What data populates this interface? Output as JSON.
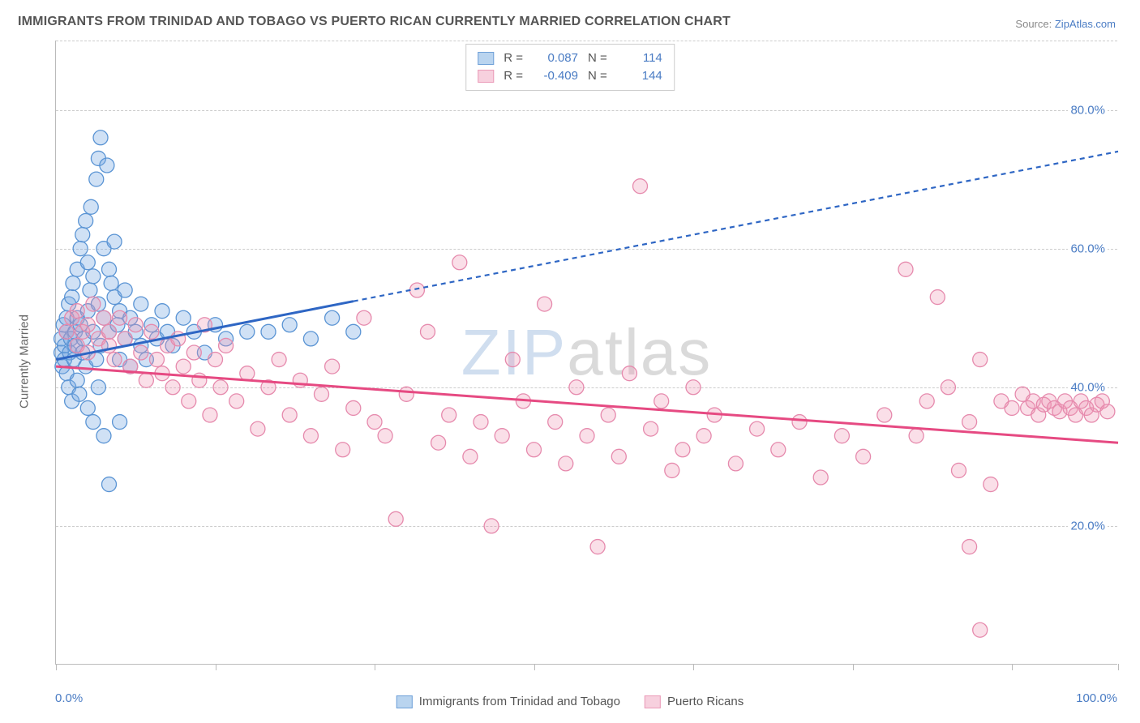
{
  "title": "IMMIGRANTS FROM TRINIDAD AND TOBAGO VS PUERTO RICAN CURRENTLY MARRIED CORRELATION CHART",
  "source_label": "Source:",
  "source_value": "ZipAtlas.com",
  "y_axis_title": "Currently Married",
  "watermark_a": "ZIP",
  "watermark_b": "atlas",
  "chart": {
    "type": "scatter",
    "xlim": [
      0,
      100
    ],
    "ylim": [
      0,
      90
    ],
    "x_ticks": [
      0,
      15,
      30,
      45,
      60,
      75,
      90,
      100
    ],
    "x_tick_labels": {
      "0": "0.0%",
      "100": "100.0%"
    },
    "y_ticks": [
      20,
      40,
      60,
      80
    ],
    "y_tick_labels": [
      "20.0%",
      "40.0%",
      "60.0%",
      "80.0%"
    ],
    "grid_color": "#cccccc",
    "background_color": "#ffffff",
    "axis_color": "#bbbbbb",
    "marker_radius": 9,
    "marker_stroke_width": 1.3,
    "trend_line_width": 3,
    "trend_dash": "6,5",
    "label_fontsize": 15,
    "title_fontsize": 16,
    "title_color": "#555555",
    "value_color": "#4a7cc4"
  },
  "series": [
    {
      "name": "Immigrants from Trinidad and Tobago",
      "fill": "rgba(120,170,225,0.35)",
      "stroke": "#5a94d4",
      "swatch_fill": "#b9d4ef",
      "swatch_border": "#6ea0d8",
      "line_color": "#2e66c4",
      "R": "0.087",
      "N": "114",
      "trend": {
        "x1": 0,
        "y1": 44,
        "x2": 100,
        "y2": 74,
        "solid_until_x": 28
      },
      "points": [
        [
          0.5,
          45
        ],
        [
          0.5,
          47
        ],
        [
          0.6,
          43
        ],
        [
          0.7,
          49
        ],
        [
          0.8,
          44
        ],
        [
          0.8,
          46
        ],
        [
          1.0,
          48
        ],
        [
          1.0,
          50
        ],
        [
          1.0,
          42
        ],
        [
          1.2,
          52
        ],
        [
          1.2,
          40
        ],
        [
          1.3,
          45
        ],
        [
          1.4,
          47
        ],
        [
          1.5,
          53
        ],
        [
          1.5,
          38
        ],
        [
          1.6,
          55
        ],
        [
          1.7,
          44
        ],
        [
          1.8,
          46
        ],
        [
          1.8,
          48
        ],
        [
          2.0,
          50
        ],
        [
          2.0,
          57
        ],
        [
          2.0,
          41
        ],
        [
          2.2,
          39
        ],
        [
          2.3,
          60
        ],
        [
          2.3,
          49
        ],
        [
          2.5,
          62
        ],
        [
          2.5,
          45
        ],
        [
          2.6,
          47
        ],
        [
          2.8,
          64
        ],
        [
          2.8,
          43
        ],
        [
          3.0,
          51
        ],
        [
          3.0,
          37
        ],
        [
          3.0,
          58
        ],
        [
          3.2,
          54
        ],
        [
          3.3,
          66
        ],
        [
          3.5,
          56
        ],
        [
          3.5,
          48
        ],
        [
          3.5,
          35
        ],
        [
          3.8,
          70
        ],
        [
          3.8,
          44
        ],
        [
          4.0,
          73
        ],
        [
          4.0,
          52
        ],
        [
          4.0,
          40
        ],
        [
          4.2,
          76
        ],
        [
          4.2,
          46
        ],
        [
          4.5,
          60
        ],
        [
          4.5,
          50
        ],
        [
          4.5,
          33
        ],
        [
          4.8,
          72
        ],
        [
          5.0,
          57
        ],
        [
          5.0,
          48
        ],
        [
          5.0,
          26
        ],
        [
          5.2,
          55
        ],
        [
          5.5,
          53
        ],
        [
          5.5,
          61
        ],
        [
          5.8,
          49
        ],
        [
          6.0,
          44
        ],
        [
          6.0,
          35
        ],
        [
          6.0,
          51
        ],
        [
          6.5,
          47
        ],
        [
          6.5,
          54
        ],
        [
          7.0,
          50
        ],
        [
          7.0,
          43
        ],
        [
          7.5,
          48
        ],
        [
          8.0,
          46
        ],
        [
          8.0,
          52
        ],
        [
          8.5,
          44
        ],
        [
          9.0,
          49
        ],
        [
          9.5,
          47
        ],
        [
          10.0,
          51
        ],
        [
          10.5,
          48
        ],
        [
          11.0,
          46
        ],
        [
          12.0,
          50
        ],
        [
          13.0,
          48
        ],
        [
          14.0,
          45
        ],
        [
          15.0,
          49
        ],
        [
          16.0,
          47
        ],
        [
          18.0,
          48
        ],
        [
          20.0,
          48
        ],
        [
          22.0,
          49
        ],
        [
          24.0,
          47
        ],
        [
          26.0,
          50
        ],
        [
          28.0,
          48
        ]
      ]
    },
    {
      "name": "Puerto Ricans",
      "fill": "rgba(240,150,180,0.30)",
      "stroke": "#e68aad",
      "swatch_fill": "#f7d0de",
      "swatch_border": "#ea9ab8",
      "line_color": "#e64a82",
      "R": "-0.409",
      "N": "144",
      "trend": {
        "x1": 0,
        "y1": 43,
        "x2": 100,
        "y2": 32,
        "solid_until_x": 100
      },
      "points": [
        [
          1.0,
          48
        ],
        [
          1.5,
          50
        ],
        [
          2.0,
          46
        ],
        [
          2.0,
          51
        ],
        [
          2.5,
          48
        ],
        [
          3.0,
          45
        ],
        [
          3.0,
          49
        ],
        [
          3.5,
          52
        ],
        [
          4.0,
          47
        ],
        [
          4.5,
          50
        ],
        [
          5.0,
          46
        ],
        [
          5.0,
          48
        ],
        [
          5.5,
          44
        ],
        [
          6.0,
          50
        ],
        [
          6.5,
          47
        ],
        [
          7.0,
          43
        ],
        [
          7.5,
          49
        ],
        [
          8.0,
          45
        ],
        [
          8.5,
          41
        ],
        [
          9.0,
          48
        ],
        [
          9.5,
          44
        ],
        [
          10,
          42
        ],
        [
          10.5,
          46
        ],
        [
          11,
          40
        ],
        [
          11.5,
          47
        ],
        [
          12,
          43
        ],
        [
          12.5,
          38
        ],
        [
          13,
          45
        ],
        [
          13.5,
          41
        ],
        [
          14,
          49
        ],
        [
          14.5,
          36
        ],
        [
          15,
          44
        ],
        [
          15.5,
          40
        ],
        [
          16,
          46
        ],
        [
          17,
          38
        ],
        [
          18,
          42
        ],
        [
          19,
          34
        ],
        [
          20,
          40
        ],
        [
          21,
          44
        ],
        [
          22,
          36
        ],
        [
          23,
          41
        ],
        [
          24,
          33
        ],
        [
          25,
          39
        ],
        [
          26,
          43
        ],
        [
          27,
          31
        ],
        [
          28,
          37
        ],
        [
          29,
          50
        ],
        [
          30,
          35
        ],
        [
          31,
          33
        ],
        [
          32,
          21
        ],
        [
          33,
          39
        ],
        [
          34,
          54
        ],
        [
          35,
          48
        ],
        [
          36,
          32
        ],
        [
          37,
          36
        ],
        [
          38,
          58
        ],
        [
          39,
          30
        ],
        [
          40,
          35
        ],
        [
          41,
          20
        ],
        [
          42,
          33
        ],
        [
          43,
          44
        ],
        [
          44,
          38
        ],
        [
          45,
          31
        ],
        [
          46,
          52
        ],
        [
          47,
          35
        ],
        [
          48,
          29
        ],
        [
          49,
          40
        ],
        [
          50,
          33
        ],
        [
          51,
          17
        ],
        [
          52,
          36
        ],
        [
          53,
          30
        ],
        [
          54,
          42
        ],
        [
          55,
          69
        ],
        [
          56,
          34
        ],
        [
          57,
          38
        ],
        [
          58,
          28
        ],
        [
          59,
          31
        ],
        [
          60,
          40
        ],
        [
          61,
          33
        ],
        [
          62,
          36
        ],
        [
          64,
          29
        ],
        [
          66,
          34
        ],
        [
          68,
          31
        ],
        [
          70,
          35
        ],
        [
          72,
          27
        ],
        [
          74,
          33
        ],
        [
          76,
          30
        ],
        [
          78,
          36
        ],
        [
          80,
          57
        ],
        [
          81,
          33
        ],
        [
          82,
          38
        ],
        [
          83,
          53
        ],
        [
          84,
          40
        ],
        [
          85,
          28
        ],
        [
          86,
          35
        ],
        [
          87,
          44
        ],
        [
          88,
          26
        ],
        [
          89,
          38
        ],
        [
          90,
          37
        ],
        [
          91,
          39
        ],
        [
          91.5,
          37
        ],
        [
          92,
          38
        ],
        [
          92.5,
          36
        ],
        [
          93,
          37.5
        ],
        [
          93.5,
          38
        ],
        [
          94,
          37
        ],
        [
          94.5,
          36.5
        ],
        [
          95,
          38
        ],
        [
          95.5,
          37
        ],
        [
          96,
          36
        ],
        [
          96.5,
          38
        ],
        [
          97,
          37
        ],
        [
          97.5,
          36
        ],
        [
          98,
          37.5
        ],
        [
          98.5,
          38
        ],
        [
          99,
          36.5
        ],
        [
          86,
          17
        ],
        [
          87,
          5
        ]
      ]
    }
  ],
  "legend_top_labels": {
    "R": "R =",
    "N": "N ="
  },
  "legend_bottom": [
    "Immigrants from Trinidad and Tobago",
    "Puerto Ricans"
  ]
}
